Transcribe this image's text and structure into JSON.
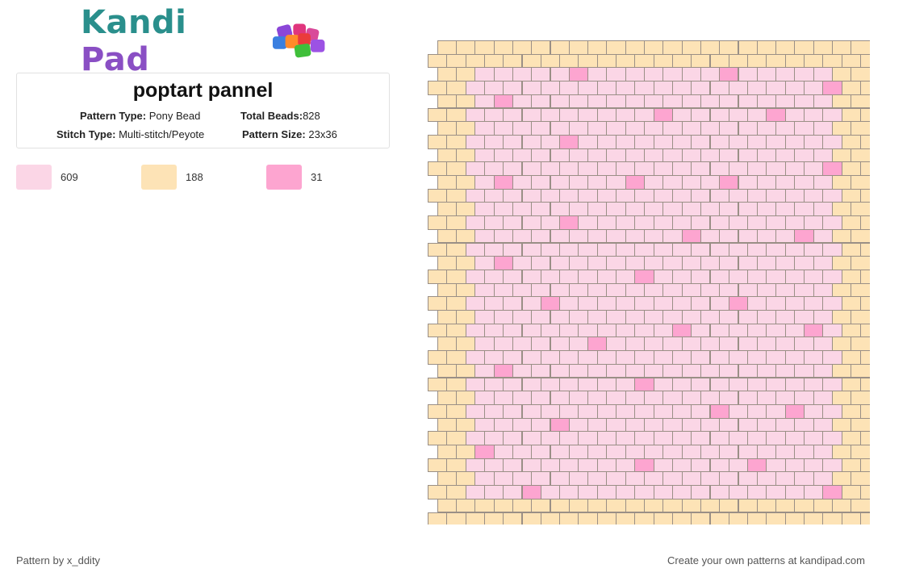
{
  "brand": {
    "part1": "Kandi",
    "part2": "Pad"
  },
  "pattern": {
    "title": "poptart pannel",
    "type_label": "Pattern Type:",
    "type_value": "Pony Bead",
    "beads_label": "Total Beads:",
    "beads_value": "828",
    "stitch_label": "Stitch Type:",
    "stitch_value": "Multi-stitch/Peyote",
    "size_label": "Pattern Size:",
    "size_value": "23x36"
  },
  "legend": [
    {
      "color": "#fbd6e6",
      "count": "609"
    },
    {
      "color": "#fde3b6",
      "count": "188"
    },
    {
      "color": "#fda5d0",
      "count": "31"
    }
  ],
  "bead_colors": {
    "pink": "#fbd6e6",
    "tan": "#fde3b6",
    "hot": "#fda5d0"
  },
  "beadgrid": {
    "columns": 23,
    "rows": 36,
    "tan_border_rows_top": 2,
    "tan_border_rows_bottom": 2,
    "accent_beads": [
      [
        2,
        7
      ],
      [
        2,
        15
      ],
      [
        3,
        21
      ],
      [
        4,
        3
      ],
      [
        5,
        12
      ],
      [
        5,
        18
      ],
      [
        7,
        7
      ],
      [
        9,
        21
      ],
      [
        10,
        3
      ],
      [
        10,
        10
      ],
      [
        10,
        15
      ],
      [
        13,
        7
      ],
      [
        14,
        13
      ],
      [
        14,
        19
      ],
      [
        16,
        3
      ],
      [
        17,
        11
      ],
      [
        19,
        6
      ],
      [
        19,
        16
      ],
      [
        21,
        13
      ],
      [
        21,
        20
      ],
      [
        22,
        8
      ],
      [
        24,
        3
      ],
      [
        25,
        11
      ],
      [
        27,
        15
      ],
      [
        27,
        19
      ],
      [
        28,
        6
      ],
      [
        30,
        2
      ],
      [
        31,
        11
      ],
      [
        31,
        17
      ],
      [
        33,
        5
      ],
      [
        33,
        21
      ]
    ]
  },
  "footer": {
    "credit": "Pattern by x_ddity",
    "cta": "Create your own patterns at kandipad.com"
  }
}
